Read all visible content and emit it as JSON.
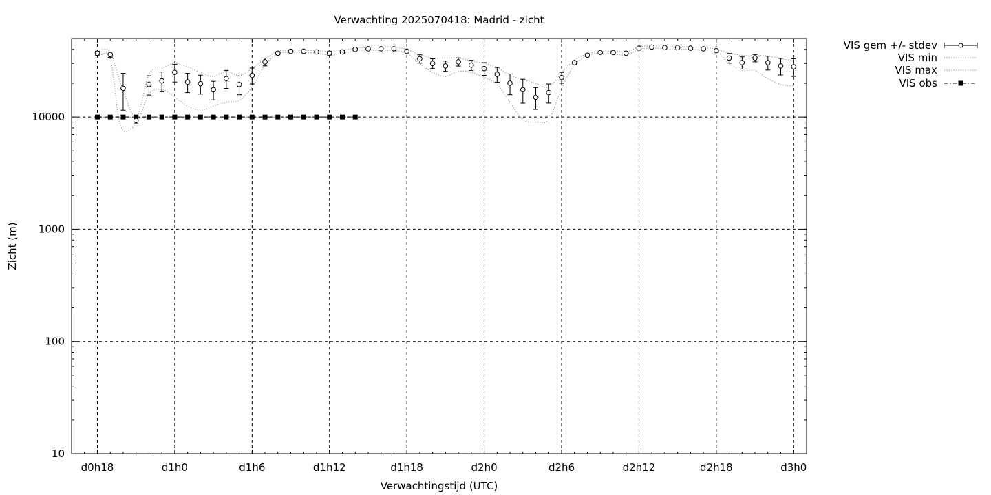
{
  "chart_data": {
    "type": "line",
    "title": "Verwachting 2025070418: Madrid - zicht",
    "xlabel": "Verwachtingstijd (UTC)",
    "ylabel": "Zicht (m)",
    "y_scale": "log",
    "ylim": [
      10,
      50000
    ],
    "xlim": [
      16,
      73
    ],
    "grid": true,
    "legend_position": "outside-right",
    "x_unit": "forecast hours since d0h0",
    "x_ticks": [
      {
        "x": 18,
        "label": "d0h18"
      },
      {
        "x": 24,
        "label": "d1h0"
      },
      {
        "x": 30,
        "label": "d1h6"
      },
      {
        "x": 36,
        "label": "d1h12"
      },
      {
        "x": 42,
        "label": "d1h18"
      },
      {
        "x": 48,
        "label": "d2h0"
      },
      {
        "x": 54,
        "label": "d2h6"
      },
      {
        "x": 60,
        "label": "d2h12"
      },
      {
        "x": 66,
        "label": "d2h18"
      },
      {
        "x": 72,
        "label": "d3h0"
      }
    ],
    "y_ticks": [
      {
        "y": 10,
        "label": "10"
      },
      {
        "y": 100,
        "label": "100"
      },
      {
        "y": 1000,
        "label": "1000"
      },
      {
        "y": 10000,
        "label": "10000"
      }
    ],
    "series": [
      {
        "name": "VIS gem +/- stdev",
        "x": [
          18,
          19,
          20,
          21,
          22,
          23,
          24,
          25,
          26,
          27,
          28,
          29,
          30,
          31,
          32,
          33,
          34,
          35,
          36,
          37,
          38,
          39,
          40,
          41,
          42,
          43,
          44,
          45,
          46,
          47,
          48,
          49,
          50,
          51,
          52,
          53,
          54,
          55,
          56,
          57,
          58,
          59,
          60,
          61,
          62,
          63,
          64,
          65,
          66,
          67,
          68,
          69,
          70,
          71,
          72
        ],
        "mean": [
          37000,
          36000,
          18000,
          9300,
          19500,
          21000,
          25000,
          20500,
          19800,
          17500,
          22000,
          19500,
          23500,
          31000,
          37000,
          38500,
          38500,
          38000,
          37000,
          38000,
          40000,
          40500,
          40500,
          40500,
          38500,
          33000,
          30000,
          28500,
          31000,
          29000,
          27000,
          24000,
          20000,
          17500,
          15000,
          16500,
          22500,
          30500,
          35500,
          37500,
          37500,
          37000,
          41000,
          42000,
          41500,
          41500,
          41000,
          40500,
          39000,
          33500,
          30500,
          33500,
          30500,
          28500,
          28000
        ],
        "stdev": [
          1500,
          2000,
          6500,
          600,
          3800,
          4200,
          4500,
          4000,
          3800,
          3300,
          4000,
          3700,
          3800,
          2500,
          1200,
          800,
          700,
          800,
          1300,
          1000,
          700,
          600,
          600,
          600,
          1000,
          2800,
          3000,
          3000,
          2600,
          3000,
          3500,
          3600,
          4200,
          4200,
          3300,
          3200,
          2500,
          900,
          700,
          600,
          700,
          800,
          600,
          500,
          600,
          500,
          500,
          600,
          800,
          3300,
          3800,
          2500,
          4300,
          4800,
          5000
        ]
      },
      {
        "name": "VIS min",
        "x": [
          18,
          19,
          19.8,
          21,
          22,
          23,
          24,
          25,
          26,
          27,
          28,
          29,
          30,
          31,
          32,
          33,
          34,
          35,
          36,
          37,
          38,
          39,
          40,
          41,
          42,
          43,
          44,
          45,
          46,
          47,
          48,
          49,
          50,
          51,
          52,
          53,
          54,
          55,
          56,
          57,
          58,
          59,
          60,
          61,
          62,
          63,
          64,
          65,
          66,
          67,
          68,
          69,
          70,
          71,
          72
        ],
        "values": [
          34000,
          33000,
          8300,
          8700,
          16000,
          17500,
          15000,
          12500,
          11500,
          12500,
          13500,
          14000,
          18500,
          29000,
          36500,
          37500,
          37500,
          37000,
          35500,
          36500,
          39000,
          39500,
          39000,
          39000,
          37000,
          30000,
          25000,
          23000,
          25500,
          25000,
          22500,
          19500,
          13500,
          9500,
          9000,
          9500,
          18000,
          29000,
          35000,
          37000,
          36500,
          35500,
          40000,
          41000,
          40500,
          40000,
          40000,
          39500,
          38500,
          30000,
          26000,
          26000,
          22000,
          19500,
          19000
        ]
      },
      {
        "name": "VIS max",
        "x": [
          18,
          19,
          19.8,
          21,
          22,
          23,
          24,
          25,
          26,
          27,
          28,
          29,
          30,
          31,
          32,
          33,
          34,
          35,
          36,
          37,
          38,
          39,
          40,
          41,
          42,
          43,
          44,
          45,
          46,
          47,
          48,
          49,
          50,
          51,
          52,
          53,
          54,
          55,
          56,
          57,
          58,
          59,
          60,
          61,
          62,
          63,
          64,
          65,
          66,
          67,
          68,
          69,
          70,
          71,
          72
        ],
        "values": [
          39000,
          38000,
          20000,
          10000,
          24000,
          27000,
          30000,
          28000,
          25000,
          23000,
          25500,
          23500,
          27000,
          33000,
          38500,
          39500,
          39500,
          39000,
          38500,
          39500,
          41000,
          41500,
          42000,
          42000,
          40000,
          36000,
          33500,
          33500,
          33500,
          31500,
          30000,
          27500,
          23500,
          21500,
          20000,
          18500,
          25000,
          32000,
          36500,
          38500,
          38500,
          38000,
          42000,
          43000,
          42500,
          42000,
          42000,
          41500,
          40000,
          37000,
          35500,
          35500,
          35000,
          33000,
          32000
        ]
      },
      {
        "name": "VIS obs",
        "x": [
          18,
          19,
          20,
          21,
          22,
          23,
          24,
          25,
          26,
          27,
          28,
          29,
          30,
          31,
          32,
          33,
          34,
          35,
          36,
          37,
          38
        ],
        "values": [
          10000,
          10000,
          10000,
          10000,
          10000,
          10000,
          10000,
          10000,
          10000,
          10000,
          10000,
          10000,
          10000,
          10000,
          10000,
          10000,
          10000,
          10000,
          10000,
          10000,
          10000
        ]
      }
    ]
  }
}
